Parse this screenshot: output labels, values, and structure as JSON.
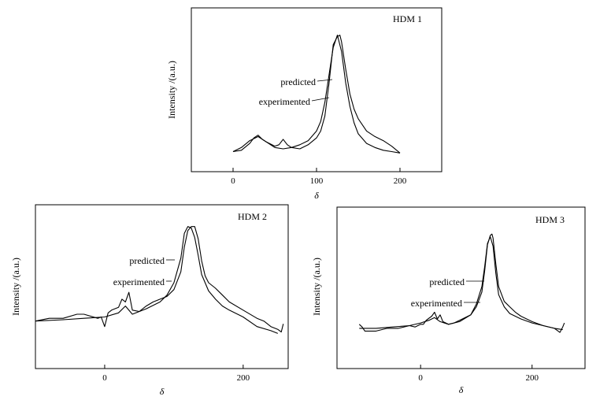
{
  "chart_data": [
    {
      "type": "line",
      "title": "HDM 1",
      "xlabel": "δ",
      "ylabel": "Intensity /(a.u.)",
      "xlim": [
        -50,
        250
      ],
      "ylim": [
        0,
        100
      ],
      "xticks": [
        0,
        100,
        200
      ],
      "grid": false,
      "legend": "annotations with leader lines",
      "series": [
        {
          "name": "predicted",
          "x": [
            0,
            10,
            20,
            30,
            40,
            50,
            60,
            70,
            80,
            90,
            100,
            105,
            110,
            115,
            120,
            125,
            130,
            135,
            140,
            145,
            150,
            160,
            170,
            180,
            190,
            200
          ],
          "y": [
            2,
            5,
            10,
            13,
            9,
            5,
            4,
            5,
            7,
            10,
            17,
            24,
            38,
            58,
            78,
            87,
            75,
            52,
            35,
            23,
            15,
            8,
            5,
            3,
            2,
            1
          ]
        },
        {
          "name": "experimented",
          "x": [
            0,
            10,
            20,
            25,
            30,
            35,
            40,
            50,
            55,
            60,
            65,
            70,
            80,
            90,
            100,
            105,
            110,
            115,
            120,
            125,
            128,
            130,
            135,
            140,
            145,
            150,
            160,
            170,
            180,
            190,
            200
          ],
          "y": [
            2,
            3,
            8,
            12,
            14,
            11,
            9,
            6,
            7,
            11,
            7,
            5,
            4,
            7,
            12,
            17,
            28,
            52,
            80,
            86,
            87,
            82,
            62,
            44,
            33,
            26,
            17,
            13,
            10,
            6,
            1
          ]
        }
      ]
    },
    {
      "type": "line",
      "title": "HDM 2",
      "xlabel": "δ",
      "ylabel": "Intensity /(a.u.)",
      "xlim": [
        -100,
        265
      ],
      "ylim": [
        0,
        100
      ],
      "xticks": [
        0,
        200
      ],
      "grid": false,
      "legend": "annotations with leader lines",
      "series": [
        {
          "name": "predicted",
          "x": [
            -100,
            -60,
            -30,
            0,
            20,
            30,
            40,
            60,
            80,
            90,
            100,
            110,
            115,
            120,
            125,
            130,
            135,
            140,
            150,
            160,
            170,
            180,
            200,
            220,
            240,
            250
          ],
          "y": [
            22,
            23,
            24,
            25,
            28,
            33,
            27,
            31,
            36,
            41,
            50,
            68,
            86,
            91,
            90,
            83,
            70,
            56,
            44,
            38,
            33,
            30,
            25,
            18,
            15,
            13
          ]
        },
        {
          "name": "experimented",
          "x": [
            -100,
            -80,
            -60,
            -40,
            -30,
            -10,
            -5,
            0,
            5,
            10,
            20,
            25,
            30,
            35,
            40,
            50,
            60,
            70,
            80,
            90,
            100,
            110,
            115,
            120,
            125,
            130,
            135,
            140,
            145,
            150,
            160,
            170,
            180,
            200,
            220,
            230,
            240,
            250,
            255,
            258
          ],
          "y": [
            22,
            24,
            24,
            27,
            27,
            24,
            25,
            18,
            28,
            30,
            32,
            38,
            36,
            43,
            30,
            29,
            33,
            36,
            38,
            40,
            45,
            58,
            76,
            88,
            91,
            91,
            82,
            66,
            55,
            50,
            46,
            41,
            36,
            30,
            24,
            22,
            18,
            16,
            14,
            20
          ]
        }
      ]
    },
    {
      "type": "line",
      "title": "HDM 3",
      "xlabel": "δ",
      "ylabel": "Intensity /(a.u.)",
      "xlim": [
        -150,
        295
      ],
      "ylim": [
        0,
        100
      ],
      "xticks": [
        0,
        200
      ],
      "grid": false,
      "legend": "annotations with leader lines",
      "series": [
        {
          "name": "predicted",
          "x": [
            -110,
            -80,
            -50,
            -20,
            0,
            15,
            25,
            35,
            50,
            70,
            90,
            100,
            110,
            115,
            120,
            125,
            130,
            135,
            140,
            150,
            160,
            180,
            200,
            220,
            240,
            255
          ],
          "y": [
            17,
            17,
            18,
            19,
            21,
            23,
            25,
            22,
            20,
            22,
            27,
            35,
            48,
            63,
            80,
            85,
            78,
            58,
            42,
            33,
            28,
            24,
            21,
            19,
            17,
            16
          ]
        },
        {
          "name": "experimented",
          "x": [
            -110,
            -105,
            -100,
            -80,
            -60,
            -40,
            -20,
            -10,
            0,
            5,
            10,
            20,
            25,
            30,
            35,
            40,
            50,
            60,
            70,
            80,
            90,
            100,
            110,
            115,
            120,
            125,
            128,
            130,
            135,
            140,
            150,
            160,
            170,
            180,
            200,
            220,
            240,
            250,
            255,
            258
          ],
          "y": [
            20,
            18,
            15,
            15,
            17,
            17,
            19,
            18,
            20,
            20,
            23,
            26,
            29,
            24,
            27,
            22,
            20,
            21,
            23,
            25,
            27,
            33,
            44,
            60,
            79,
            86,
            87,
            84,
            65,
            48,
            37,
            33,
            29,
            26,
            22,
            19,
            17,
            14,
            18,
            21
          ]
        }
      ]
    }
  ]
}
